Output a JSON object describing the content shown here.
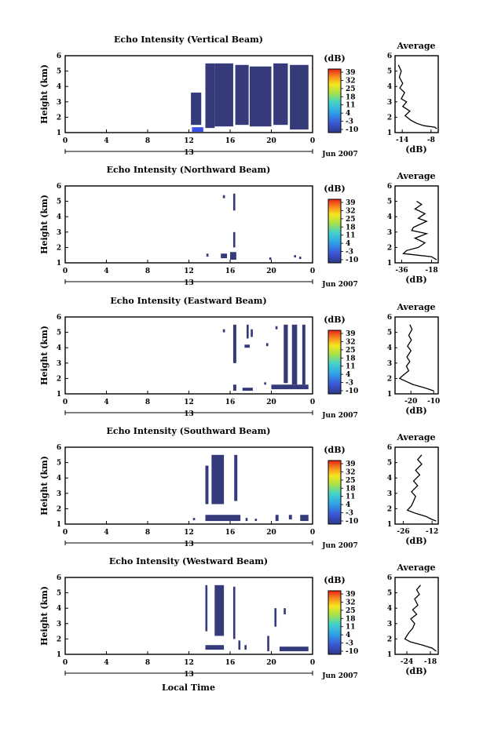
{
  "figure": {
    "xlabel": "Local Time",
    "date_label": "Jun 2007",
    "day_label": "13",
    "colorbar_unit": "(dB)",
    "avg_title": "Average",
    "avg_xlabel": "(dB)",
    "ylabel": "Height (km)"
  },
  "chart_data": [
    {
      "type": "heatmap",
      "title": "Echo Intensity (Vertical Beam)",
      "xlabel": "Local Time",
      "ylabel": "Height (km)",
      "x_ticks": [
        "0",
        "4",
        "8",
        "12",
        "16",
        "20",
        "0"
      ],
      "xlim": [
        0,
        24
      ],
      "y_ticks": [
        "1",
        "2",
        "3",
        "4",
        "5",
        "6"
      ],
      "ylim": [
        1,
        6
      ],
      "colorbar_ticks": [
        "39",
        "32",
        "25",
        "18",
        "11",
        "4",
        "-3",
        "-10"
      ],
      "cells": [
        {
          "t0": 13.6,
          "t1": 14.5,
          "h0": 1.3,
          "h1": 5.5
        },
        {
          "t0": 14.5,
          "t1": 16.3,
          "h0": 1.4,
          "h1": 5.5
        },
        {
          "t0": 16.5,
          "t1": 17.8,
          "h0": 1.5,
          "h1": 5.4
        },
        {
          "t0": 17.9,
          "t1": 20.0,
          "h0": 1.4,
          "h1": 5.3
        },
        {
          "t0": 20.2,
          "t1": 21.6,
          "h0": 1.5,
          "h1": 5.5
        },
        {
          "t0": 21.8,
          "t1": 23.6,
          "h0": 1.2,
          "h1": 5.4
        },
        {
          "t0": 12.2,
          "t1": 13.2,
          "h0": 1.5,
          "h1": 3.6
        },
        {
          "t0": 12.3,
          "t1": 13.4,
          "h0": 1.05,
          "h1": 1.35,
          "color": "#3a4fe8"
        }
      ],
      "avg": {
        "xticks": [
          "-14",
          "-8"
        ],
        "xlim": [
          -15.5,
          -6.5
        ],
        "x": [
          -14.8,
          -14.2,
          -14.6,
          -13.9,
          -14.5,
          -13.5,
          -14.2,
          -13.1,
          -13.9,
          -12.4,
          -13.4,
          -12.2,
          -11.0,
          -9.5,
          -7.2,
          -6.8
        ],
        "y": [
          5.4,
          5.0,
          4.6,
          4.2,
          3.9,
          3.6,
          3.2,
          3.0,
          2.7,
          2.4,
          2.1,
          1.8,
          1.6,
          1.45,
          1.35,
          1.25
        ]
      }
    },
    {
      "type": "heatmap",
      "title": "Echo Intensity (Northward Beam)",
      "xlabel": "Local Time",
      "ylabel": "Height (km)",
      "x_ticks": [
        "0",
        "4",
        "8",
        "12",
        "16",
        "20",
        "0"
      ],
      "xlim": [
        0,
        24
      ],
      "y_ticks": [
        "1",
        "2",
        "3",
        "4",
        "5",
        "6"
      ],
      "ylim": [
        1,
        6
      ],
      "colorbar_ticks": [
        "39",
        "32",
        "25",
        "18",
        "11",
        "4",
        "-3",
        "-10"
      ],
      "cells": [
        {
          "t0": 15.3,
          "t1": 15.5,
          "h0": 5.2,
          "h1": 5.4
        },
        {
          "t0": 16.3,
          "t1": 16.5,
          "h0": 4.4,
          "h1": 5.5
        },
        {
          "t0": 16.3,
          "t1": 16.5,
          "h0": 2.0,
          "h1": 3.0
        },
        {
          "t0": 13.7,
          "t1": 13.9,
          "h0": 1.4,
          "h1": 1.6
        },
        {
          "t0": 15.1,
          "t1": 15.7,
          "h0": 1.3,
          "h1": 1.6
        },
        {
          "t0": 16.0,
          "t1": 16.6,
          "h0": 1.2,
          "h1": 1.7
        },
        {
          "t0": 19.8,
          "t1": 20.0,
          "h0": 1.2,
          "h1": 1.35
        },
        {
          "t0": 22.2,
          "t1": 22.4,
          "h0": 1.35,
          "h1": 1.5
        },
        {
          "t0": 22.7,
          "t1": 22.9,
          "h0": 1.25,
          "h1": 1.4
        }
      ],
      "avg": {
        "xticks": [
          "-36",
          "-18"
        ],
        "xlim": [
          -40,
          -14
        ],
        "x": [
          -27,
          -24,
          -28,
          -22,
          -26,
          -21,
          -25,
          -29,
          -30,
          -21,
          -28,
          -22,
          -26,
          -33,
          -35,
          -18,
          -15
        ],
        "y": [
          5.0,
          4.8,
          4.5,
          4.2,
          3.9,
          3.7,
          3.5,
          3.3,
          3.1,
          2.9,
          2.6,
          2.3,
          2.0,
          1.8,
          1.6,
          1.4,
          1.2
        ]
      }
    },
    {
      "type": "heatmap",
      "title": "Echo Intensity (Eastward Beam)",
      "xlabel": "Local Time",
      "ylabel": "Height (km)",
      "x_ticks": [
        "0",
        "4",
        "8",
        "12",
        "16",
        "20",
        "0"
      ],
      "xlim": [
        0,
        24
      ],
      "y_ticks": [
        "1",
        "2",
        "3",
        "4",
        "5",
        "6"
      ],
      "ylim": [
        1,
        6
      ],
      "colorbar_ticks": [
        "39",
        "32",
        "25",
        "18",
        "11",
        "4",
        "-3",
        "-10"
      ],
      "cells": [
        {
          "t0": 15.3,
          "t1": 15.5,
          "h0": 5.0,
          "h1": 5.2
        },
        {
          "t0": 16.3,
          "t1": 16.6,
          "h0": 3.0,
          "h1": 5.5
        },
        {
          "t0": 17.6,
          "t1": 17.8,
          "h0": 4.6,
          "h1": 5.5
        },
        {
          "t0": 18.0,
          "t1": 18.2,
          "h0": 4.7,
          "h1": 5.2
        },
        {
          "t0": 17.4,
          "t1": 17.9,
          "h0": 4.0,
          "h1": 4.2
        },
        {
          "t0": 19.5,
          "t1": 19.7,
          "h0": 4.1,
          "h1": 4.3
        },
        {
          "t0": 20.4,
          "t1": 20.6,
          "h0": 5.2,
          "h1": 5.4
        },
        {
          "t0": 21.2,
          "t1": 21.6,
          "h0": 1.7,
          "h1": 5.5
        },
        {
          "t0": 22.0,
          "t1": 22.5,
          "h0": 1.6,
          "h1": 5.5
        },
        {
          "t0": 23.0,
          "t1": 23.3,
          "h0": 1.6,
          "h1": 5.5
        },
        {
          "t0": 16.3,
          "t1": 16.6,
          "h0": 1.2,
          "h1": 1.6
        },
        {
          "t0": 17.2,
          "t1": 18.2,
          "h0": 1.2,
          "h1": 1.4
        },
        {
          "t0": 19.3,
          "t1": 19.5,
          "h0": 1.6,
          "h1": 1.75
        },
        {
          "t0": 20.0,
          "t1": 23.6,
          "h0": 1.3,
          "h1": 1.6
        }
      ],
      "avg": {
        "xticks": [
          "-20",
          "-10"
        ],
        "xlim": [
          -27,
          -8
        ],
        "x": [
          -20.5,
          -19.5,
          -21,
          -19.8,
          -21.5,
          -20,
          -21.8,
          -20.5,
          -22,
          -21,
          -23.5,
          -25,
          -22,
          -19,
          -14,
          -10
        ],
        "y": [
          5.5,
          5.2,
          4.8,
          4.5,
          4.1,
          3.8,
          3.4,
          3.1,
          2.8,
          2.5,
          2.2,
          2.0,
          1.8,
          1.6,
          1.4,
          1.2
        ]
      }
    },
    {
      "type": "heatmap",
      "title": "Echo Intensity (Southward Beam)",
      "xlabel": "Local Time",
      "ylabel": "Height (km)",
      "x_ticks": [
        "0",
        "4",
        "8",
        "12",
        "16",
        "20",
        "0"
      ],
      "xlim": [
        0,
        24
      ],
      "y_ticks": [
        "1",
        "2",
        "3",
        "4",
        "5",
        "6"
      ],
      "ylim": [
        1,
        6
      ],
      "colorbar_ticks": [
        "39",
        "32",
        "25",
        "18",
        "11",
        "4",
        "-3",
        "-10"
      ],
      "cells": [
        {
          "t0": 13.6,
          "t1": 13.9,
          "h0": 2.3,
          "h1": 4.8
        },
        {
          "t0": 14.2,
          "t1": 15.4,
          "h0": 2.3,
          "h1": 5.5
        },
        {
          "t0": 16.4,
          "t1": 16.7,
          "h0": 2.5,
          "h1": 5.5
        },
        {
          "t0": 12.4,
          "t1": 12.6,
          "h0": 1.25,
          "h1": 1.4
        },
        {
          "t0": 13.6,
          "t1": 17.0,
          "h0": 1.2,
          "h1": 1.6
        },
        {
          "t0": 17.5,
          "t1": 17.7,
          "h0": 1.2,
          "h1": 1.4
        },
        {
          "t0": 18.4,
          "t1": 18.6,
          "h0": 1.2,
          "h1": 1.35
        },
        {
          "t0": 20.4,
          "t1": 20.7,
          "h0": 1.2,
          "h1": 1.6
        },
        {
          "t0": 21.7,
          "t1": 22.0,
          "h0": 1.3,
          "h1": 1.6
        },
        {
          "t0": 22.8,
          "t1": 23.6,
          "h0": 1.2,
          "h1": 1.6
        }
      ],
      "avg": {
        "xticks": [
          "-26",
          "-12"
        ],
        "xlim": [
          -30,
          -9
        ],
        "x": [
          -17,
          -19,
          -17,
          -20,
          -18,
          -21,
          -19,
          -22,
          -20,
          -21,
          -22,
          -24,
          -20,
          -15,
          -12,
          -10
        ],
        "y": [
          5.5,
          5.2,
          4.9,
          4.5,
          4.2,
          3.8,
          3.5,
          3.1,
          2.8,
          2.5,
          2.2,
          1.9,
          1.7,
          1.5,
          1.3,
          1.2
        ]
      }
    },
    {
      "type": "heatmap",
      "title": "Echo Intensity (Westward Beam)",
      "xlabel": "Local Time",
      "ylabel": "Height (km)",
      "x_ticks": [
        "0",
        "4",
        "8",
        "12",
        "16",
        "20",
        "0"
      ],
      "xlim": [
        0,
        24
      ],
      "y_ticks": [
        "1",
        "2",
        "3",
        "4",
        "5",
        "6"
      ],
      "ylim": [
        1,
        6
      ],
      "colorbar_ticks": [
        "39",
        "32",
        "25",
        "18",
        "11",
        "4",
        "-3",
        "-10"
      ],
      "cells": [
        {
          "t0": 13.6,
          "t1": 13.8,
          "h0": 2.5,
          "h1": 5.5
        },
        {
          "t0": 14.5,
          "t1": 15.4,
          "h0": 2.2,
          "h1": 5.5
        },
        {
          "t0": 16.3,
          "t1": 16.5,
          "h0": 2.0,
          "h1": 5.4
        },
        {
          "t0": 13.6,
          "t1": 15.4,
          "h0": 1.3,
          "h1": 1.6
        },
        {
          "t0": 16.8,
          "t1": 17.0,
          "h0": 1.3,
          "h1": 1.9
        },
        {
          "t0": 17.4,
          "t1": 17.6,
          "h0": 1.3,
          "h1": 1.6
        },
        {
          "t0": 19.6,
          "t1": 19.8,
          "h0": 1.2,
          "h1": 2.2
        },
        {
          "t0": 20.3,
          "t1": 20.5,
          "h0": 2.8,
          "h1": 4.0
        },
        {
          "t0": 21.2,
          "t1": 21.4,
          "h0": 3.6,
          "h1": 4.0
        },
        {
          "t0": 20.8,
          "t1": 23.6,
          "h0": 1.2,
          "h1": 1.5
        }
      ],
      "avg": {
        "xticks": [
          "-24",
          "-18"
        ],
        "xlim": [
          -27,
          -16
        ],
        "x": [
          -20.5,
          -21.5,
          -20.8,
          -22,
          -21.2,
          -22.5,
          -21.5,
          -23,
          -22,
          -22.5,
          -23.5,
          -24.5,
          -23,
          -20,
          -17.5,
          -16.5
        ],
        "y": [
          5.5,
          5.2,
          4.9,
          4.6,
          4.2,
          3.9,
          3.6,
          3.3,
          3.0,
          2.7,
          2.4,
          2.0,
          1.8,
          1.6,
          1.4,
          1.2
        ]
      }
    }
  ],
  "colors": {
    "echo": "#353a7a",
    "frame": "#000000",
    "background": "#ffffff"
  }
}
